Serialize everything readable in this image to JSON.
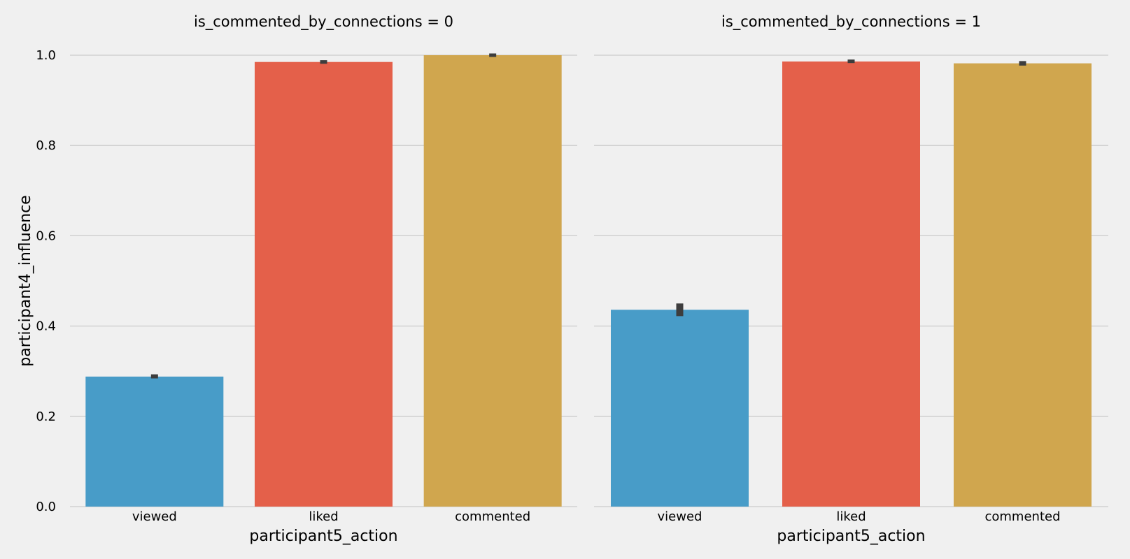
{
  "chart_data": {
    "type": "bar",
    "ylabel": "participant4_influence",
    "xlabel": "participant5_action",
    "ylim": [
      0.0,
      1.0
    ],
    "yticks": [
      "0.0",
      "0.2",
      "0.4",
      "0.6",
      "0.8",
      "1.0"
    ],
    "grid": true,
    "colors": {
      "viewed": "#489cc8",
      "liked": "#e4604a",
      "commented": "#d0a64e",
      "error_bar": "#3d3d3d",
      "grid": "#cbcbcb",
      "background": "#f0f0f0"
    },
    "panels": [
      {
        "title": "is_commented_by_connections = 0",
        "categories": [
          "viewed",
          "liked",
          "commented"
        ],
        "values": [
          0.288,
          0.985,
          1.0
        ],
        "ci": [
          [
            0.284,
            0.293
          ],
          [
            0.981,
            0.989
          ],
          [
            1.0,
            1.0
          ]
        ]
      },
      {
        "title": "is_commented_by_connections = 1",
        "categories": [
          "viewed",
          "liked",
          "commented"
        ],
        "values": [
          0.436,
          0.986,
          0.982
        ],
        "ci": [
          [
            0.422,
            0.45
          ],
          [
            0.983,
            0.99
          ],
          [
            0.977,
            0.987
          ]
        ]
      }
    ]
  }
}
